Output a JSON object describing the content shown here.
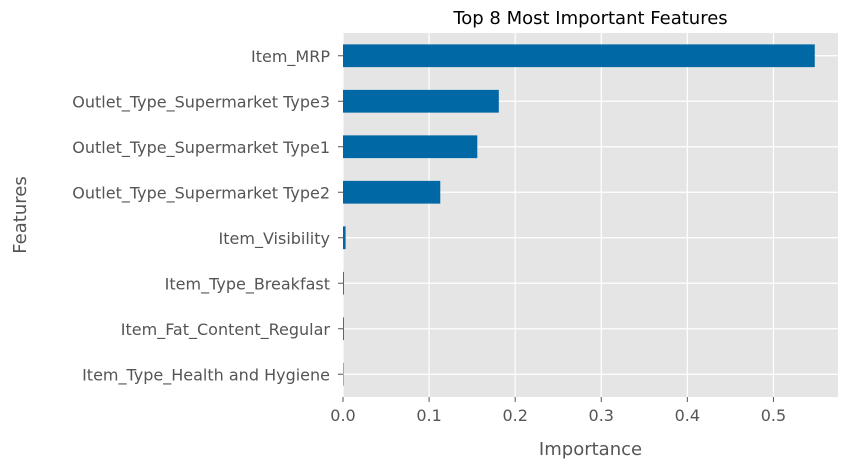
{
  "chart_data": {
    "type": "bar",
    "orientation": "horizontal",
    "title": "Top 8 Most Important Features",
    "xlabel": "Importance",
    "ylabel": "Features",
    "categories": [
      "Item_MRP",
      "Outlet_Type_Supermarket Type3",
      "Outlet_Type_Supermarket Type1",
      "Outlet_Type_Supermarket Type2",
      "Item_Visibility",
      "Item_Type_Breakfast",
      "Item_Fat_Content_Regular",
      "Item_Type_Health and Hygiene"
    ],
    "values": [
      0.548,
      0.181,
      0.156,
      0.113,
      0.003,
      0.001,
      0.001,
      0.0005
    ],
    "xlim": [
      0.0,
      0.575
    ],
    "xticks": [
      "0.0",
      "0.1",
      "0.2",
      "0.3",
      "0.4",
      "0.5"
    ],
    "grid": true,
    "bar_color": "#0068a5",
    "plot_background": "#e5e5e5",
    "grid_color": "#ffffff"
  }
}
